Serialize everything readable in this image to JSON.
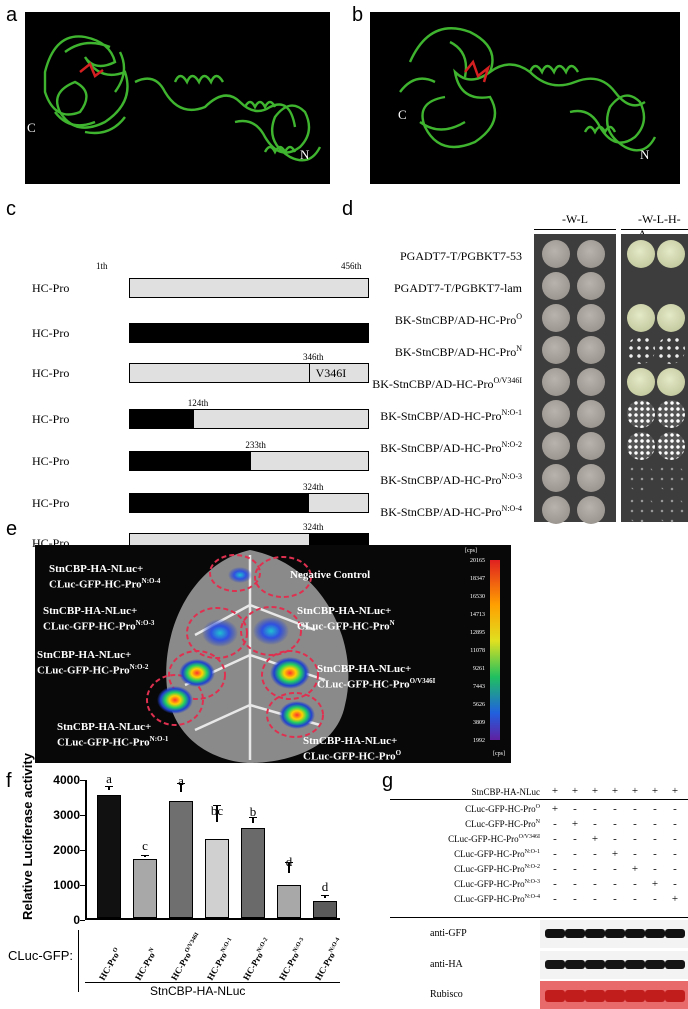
{
  "panels": {
    "a": "a",
    "b": "b",
    "c": "c",
    "d": "d",
    "e": "e",
    "f": "f",
    "g": "g"
  },
  "structure": {
    "c_label": "C",
    "n_label": "N"
  },
  "panel_c": {
    "rows": [
      {
        "name": "HC-Pro",
        "sup": "O",
        "black_from": 0,
        "black_to": 0,
        "tick": null
      },
      {
        "name": "HC-Pro",
        "sup": "N",
        "black_from": 0,
        "black_to": 1,
        "tick": null
      },
      {
        "name": "HC-Pro",
        "sup": "O/V346I",
        "black_from": 0,
        "black_to": 0,
        "tick": "346th",
        "mutation": "V346I"
      },
      {
        "name": "HC-Pro",
        "sup": "N:O-1",
        "black_from": 0,
        "black_to": 0.27,
        "tick": "124th"
      },
      {
        "name": "HC-Pro",
        "sup": "N:O-2",
        "black_from": 0,
        "black_to": 0.51,
        "tick": "233th"
      },
      {
        "name": "HC-Pro",
        "sup": "N:O-3",
        "black_from": 0,
        "black_to": 0.75,
        "tick": "324th"
      },
      {
        "name": "HC-Pro",
        "sup": "N:O-4",
        "black_from": 0.75,
        "black_to": 1,
        "tick": "324th"
      }
    ],
    "start_tick": "1th",
    "end_tick": "456th"
  },
  "panel_d": {
    "col_headers": [
      "-W-L",
      "-W-L-H-A"
    ],
    "rows": [
      {
        "name": "PGADT7-T/PGBKT7-53",
        "sup": "",
        "growth": "full"
      },
      {
        "name": "PGADT7-T/PGBKT7-lam",
        "sup": "",
        "growth": "none"
      },
      {
        "name": "BK-StnCBP/AD-HC-Pro",
        "sup": "O",
        "growth": "full"
      },
      {
        "name": "BK-StnCBP/AD-HC-Pro",
        "sup": "N",
        "growth": "sparse"
      },
      {
        "name": "BK-StnCBP/AD-HC-Pro",
        "sup": "O/V346I",
        "growth": "full"
      },
      {
        "name": "BK-StnCBP/AD-HC-Pro",
        "sup": "N:O-1",
        "growth": "dots"
      },
      {
        "name": "BK-StnCBP/AD-HC-Pro",
        "sup": "N:O-2",
        "growth": "dots"
      },
      {
        "name": "BK-StnCBP/AD-HC-Pro",
        "sup": "N:O-3",
        "growth": "trace"
      },
      {
        "name": "BK-StnCBP/AD-HC-Pro",
        "sup": "N:O-4",
        "growth": "trace"
      }
    ]
  },
  "panel_e": {
    "labels": [
      {
        "l1": "StnCBP-HA-NLuc+",
        "l2": "CLuc-GFP-HC-Pro",
        "sup": "N:O-4"
      },
      {
        "l1": "Negative Control",
        "l2": "",
        "sup": ""
      },
      {
        "l1": "StnCBP-HA-NLuc+",
        "l2": "CLuc-GFP-HC-Pro",
        "sup": "N:O-3"
      },
      {
        "l1": "StnCBP-HA-NLuc+",
        "l2": "CLuc-GFP-HC-Pro",
        "sup": "N"
      },
      {
        "l1": "StnCBP-HA-NLuc+",
        "l2": "CLuc-GFP-HC-Pro",
        "sup": "N:O-2"
      },
      {
        "l1": "StnCBP-HA-NLuc+",
        "l2": "CLuc-GFP-HC-Pro",
        "sup": "O/V346I"
      },
      {
        "l1": "StnCBP-HA-NLuc+",
        "l2": "CLuc-GFP-HC-Pro",
        "sup": "N:O-1"
      },
      {
        "l1": "StnCBP-HA-NLuc+",
        "l2": "CLuc-GFP-HC-Pro",
        "sup": "O"
      }
    ],
    "scale_unit": "[cps]",
    "scale_ticks": [
      "20165",
      "18347",
      "16530",
      "14713",
      "12895",
      "11078",
      "9261",
      "7443",
      "5626",
      "3809",
      "1992"
    ],
    "scale_unit_bottom": "[cps]"
  },
  "chart_data": {
    "type": "bar",
    "categories": [
      "HC-Pro^O",
      "HC-Pro^N",
      "HC-Pro^O/V346I",
      "HC-Pro^N:O-1",
      "HC-Pro^N:O-2",
      "HC-Pro^N:O-3",
      "HC-Pro^N:O-4"
    ],
    "values": [
      3520,
      1680,
      3330,
      2270,
      2560,
      950,
      490
    ],
    "errors": [
      130,
      60,
      260,
      480,
      160,
      330,
      90
    ],
    "letters": [
      "a",
      "c",
      "a",
      "bc",
      "b",
      "d",
      "d"
    ],
    "colors": [
      "#111111",
      "#a8a8a8",
      "#6f6f6f",
      "#d0d0d0",
      "#6a6a6a",
      "#a8a8a8",
      "#5a5a5a"
    ],
    "ylabel": "Relative Luciferase activity",
    "ylim": [
      0,
      4000
    ],
    "yticks": [
      "0",
      "1000",
      "2000",
      "3000",
      "4000"
    ],
    "xlabel_prefix": "CLuc-GFP:",
    "group_label": "StnCBP-HA-NLuc"
  },
  "panel_g": {
    "header": "StnCBP-HA-NLuc",
    "rows": [
      {
        "name": "CLuc-GFP-HC-Pro",
        "sup": "O"
      },
      {
        "name": "CLuc-GFP-HC-Pro",
        "sup": "N"
      },
      {
        "name": "CLuc-GFP-HC-Pro",
        "sup": "O/V346I"
      },
      {
        "name": "CLuc-GFP-HC-Pro",
        "sup": "N:O-1"
      },
      {
        "name": "CLuc-GFP-HC-Pro",
        "sup": "N:O-2"
      },
      {
        "name": "CLuc-GFP-HC-Pro",
        "sup": "N:O-3"
      },
      {
        "name": "CLuc-GFP-HC-Pro",
        "sup": "N:O-4"
      }
    ],
    "blots": [
      "anti-GFP",
      "anti-HA",
      "Rubisco"
    ]
  }
}
